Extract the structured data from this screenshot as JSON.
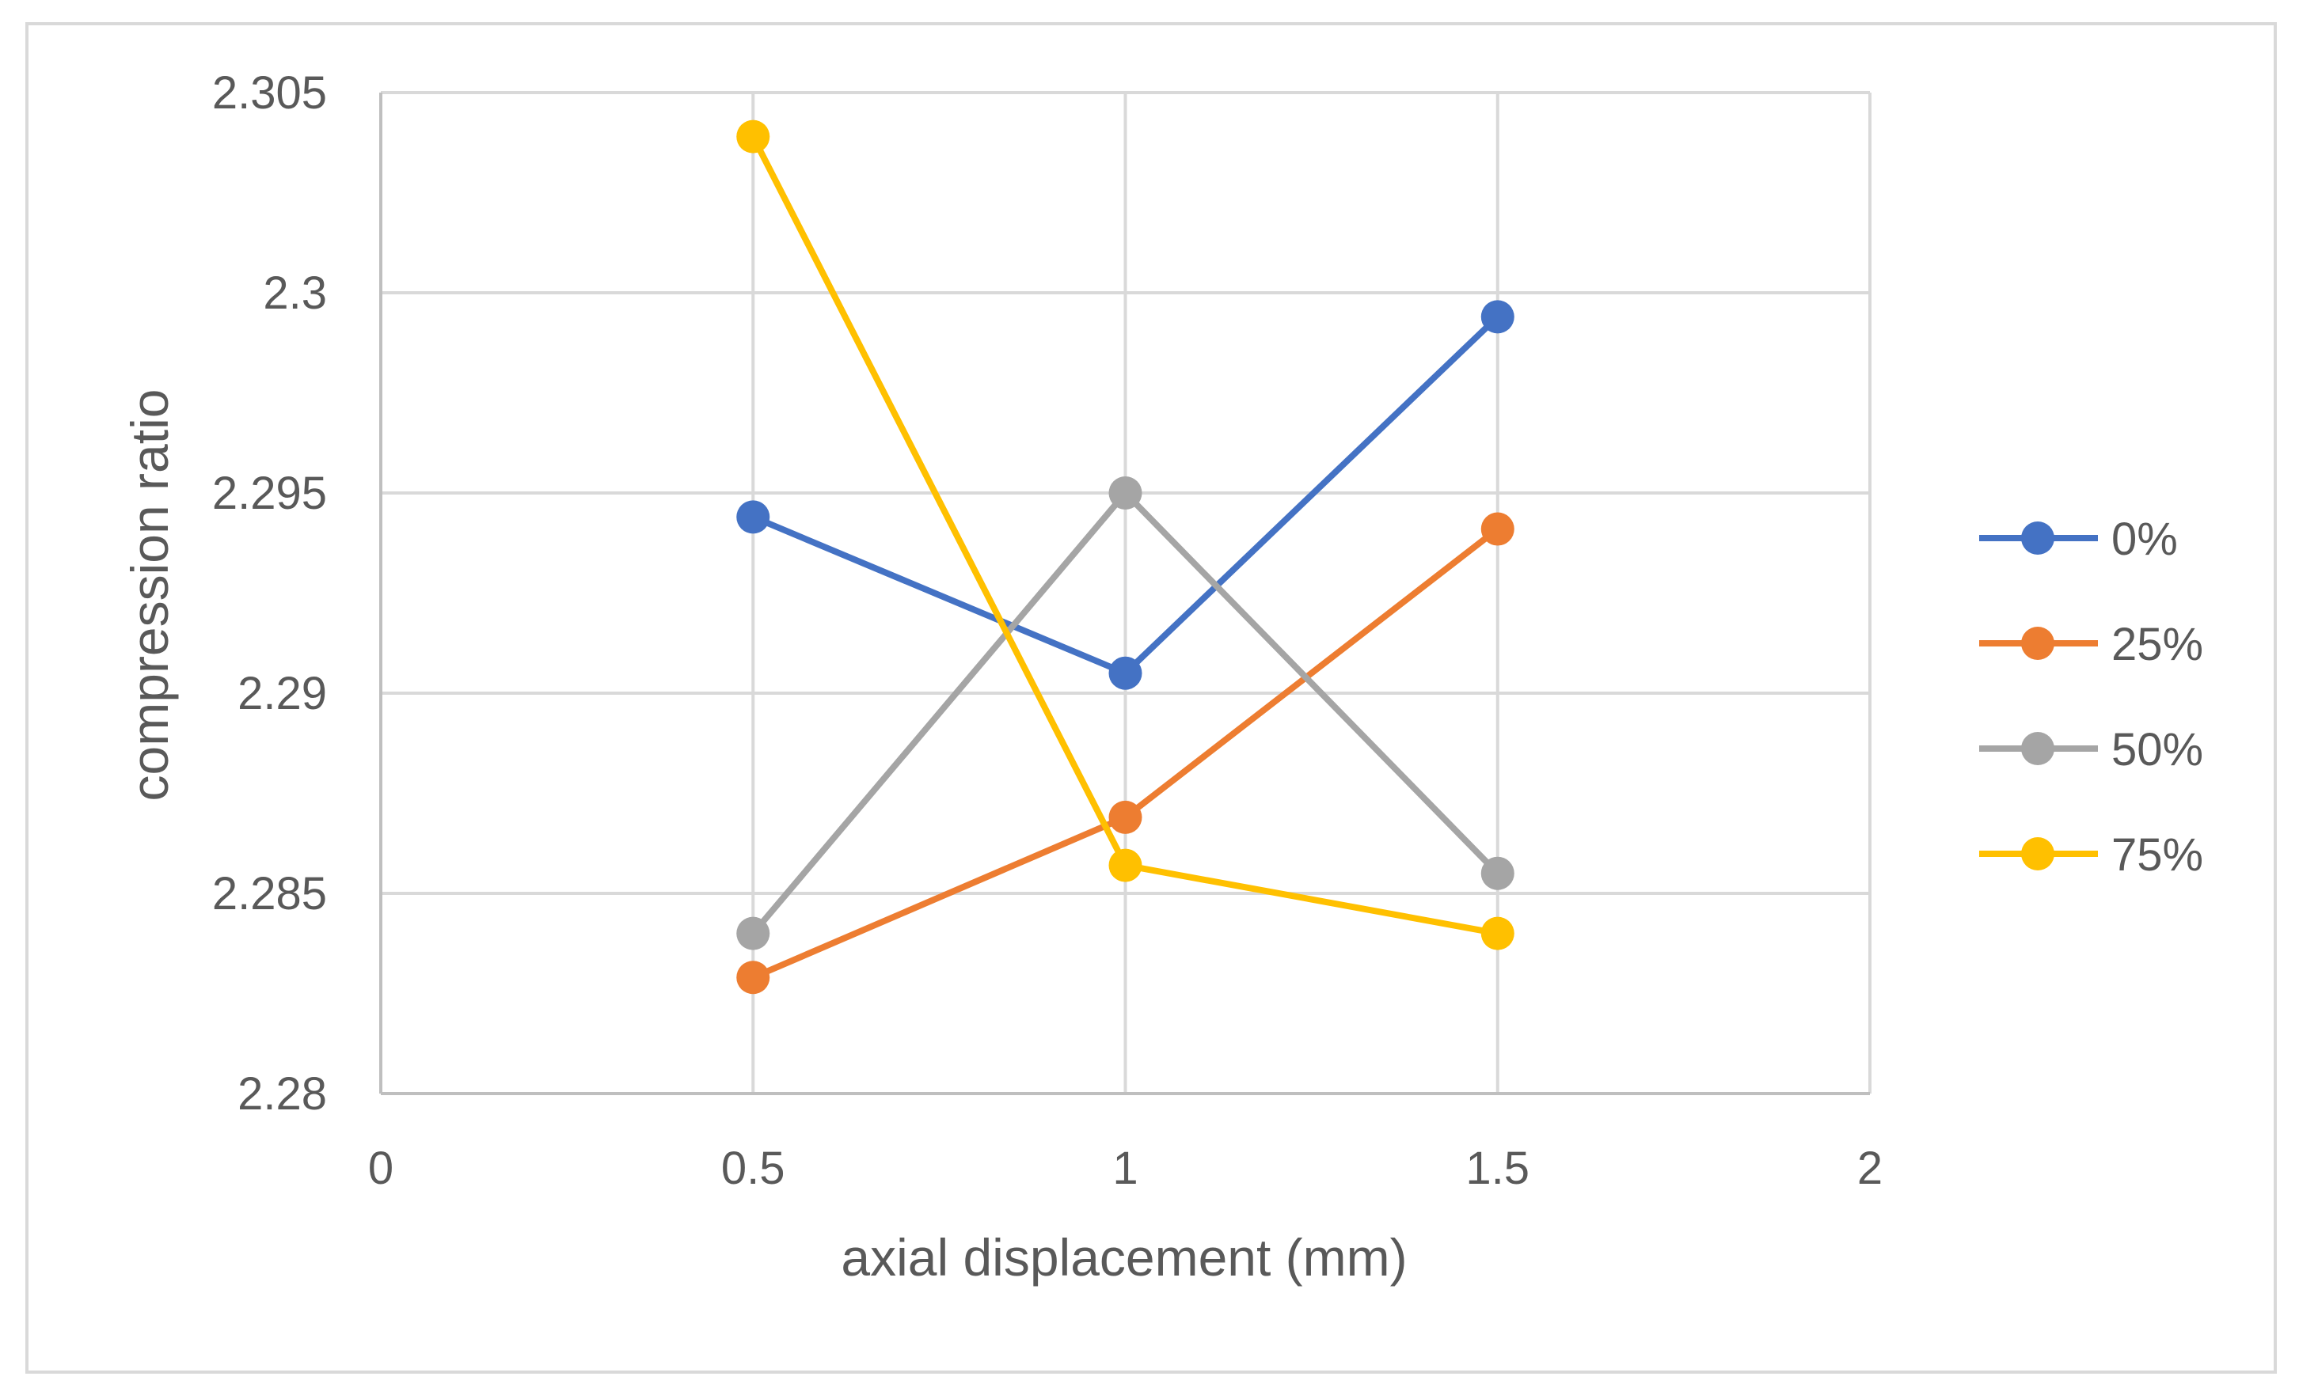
{
  "chart_data": {
    "type": "line",
    "title": "",
    "xlabel": "axial displacement (mm)",
    "ylabel": "compression ratio",
    "xlim": [
      0,
      2
    ],
    "ylim": [
      2.28,
      2.305
    ],
    "x_ticks": [
      0,
      0.5,
      1,
      1.5,
      2
    ],
    "x_tick_labels": [
      "0",
      "0.5",
      "1",
      "1.5",
      "2"
    ],
    "y_ticks": [
      2.28,
      2.285,
      2.29,
      2.295,
      2.3,
      2.305
    ],
    "y_tick_labels": [
      "2.28",
      "2.285",
      "2.29",
      "2.295",
      "2.3",
      "2.305"
    ],
    "grid": true,
    "legend_position": "right",
    "x": [
      0.5,
      1,
      1.5
    ],
    "series": [
      {
        "name": "0%",
        "color": "#4472C4",
        "values": [
          2.2944,
          2.2905,
          2.2994
        ]
      },
      {
        "name": "25%",
        "color": "#ED7D31",
        "values": [
          2.2829,
          2.2869,
          2.2941
        ]
      },
      {
        "name": "50%",
        "color": "#A5A5A5",
        "values": [
          2.284,
          2.295,
          2.2855
        ]
      },
      {
        "name": "75%",
        "color": "#FFC000",
        "values": [
          2.3039,
          2.2857,
          2.284
        ]
      }
    ]
  }
}
